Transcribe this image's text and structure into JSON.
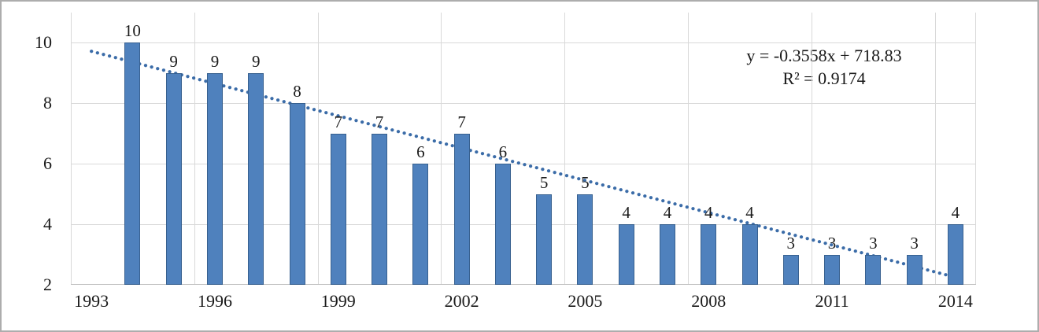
{
  "chart_data": {
    "type": "bar",
    "title": "",
    "xlabel": "",
    "ylabel": "",
    "categories": [
      1993,
      1994,
      1995,
      1996,
      1997,
      1998,
      1999,
      2000,
      2001,
      2002,
      2003,
      2004,
      2005,
      2006,
      2007,
      2008,
      2009,
      2010,
      2011,
      2012,
      2013,
      2014
    ],
    "values": [
      null,
      10,
      9,
      9,
      9,
      8,
      7,
      7,
      6,
      7,
      6,
      5,
      5,
      4,
      4,
      4,
      4,
      3,
      3,
      3,
      3,
      4
    ],
    "x_tick_labels": [
      "1993",
      "1996",
      "1999",
      "2002",
      "2005",
      "2008",
      "2011",
      "2014"
    ],
    "y_ticks": [
      2,
      4,
      6,
      8,
      10
    ],
    "ylim": [
      2,
      11
    ],
    "grid": true,
    "legend": "none",
    "trendline": {
      "slope": -0.3558,
      "intercept": 718.83,
      "equation_label": "y = -0.3558x + 718.83",
      "r_squared_label": "R² = 0.9174"
    },
    "colors": {
      "bar_fill": "#4F81BD",
      "bar_border": "#37608F",
      "trendline": "#3B6CA8",
      "gridline": "#D9D9D9",
      "axis_line": "#BFBFBF",
      "text": "#1a1a1a"
    }
  }
}
